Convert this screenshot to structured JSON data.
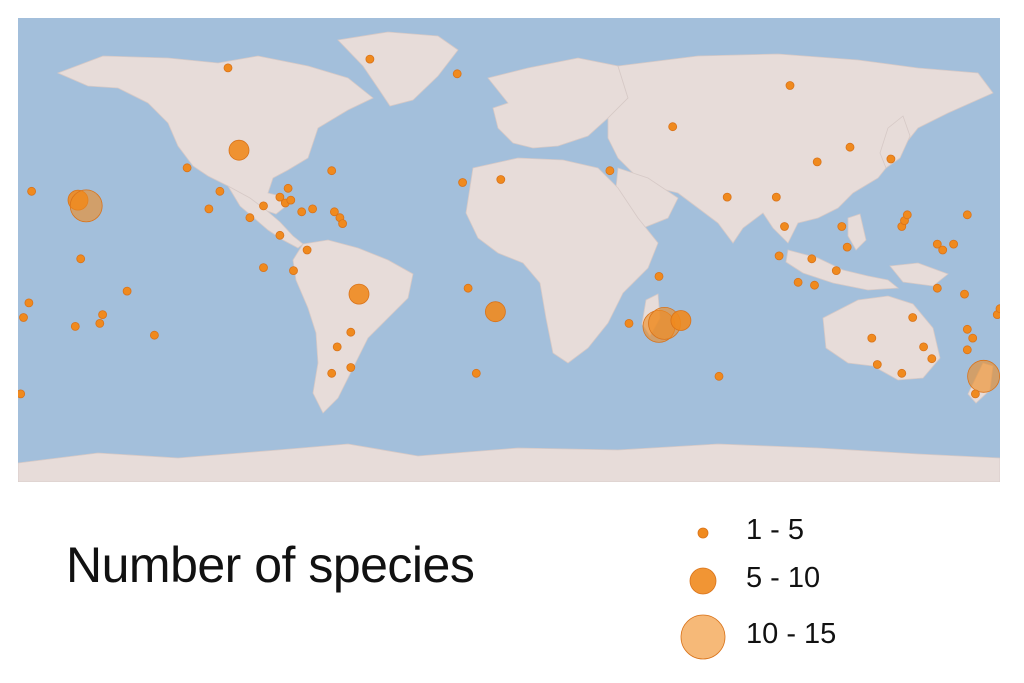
{
  "colors": {
    "ocean": "#a3bfdb",
    "land": "#e7dcd9",
    "marker": "#f08a1e",
    "marker_stroke": "#d9731a"
  },
  "legend": {
    "title": "Number of species",
    "classes": [
      {
        "label": "1 - 5",
        "size": "small"
      },
      {
        "label": "5 - 10",
        "size": "medium"
      },
      {
        "label": "10 - 15",
        "size": "large"
      }
    ]
  },
  "markers": [
    {
      "lon": -103,
      "lat": 67,
      "class": "small"
    },
    {
      "lon": -99,
      "lat": 39,
      "class": "medium"
    },
    {
      "lon": -51,
      "lat": 70,
      "class": "small"
    },
    {
      "lon": -19,
      "lat": 65,
      "class": "small"
    },
    {
      "lon": -65,
      "lat": 32,
      "class": "small"
    },
    {
      "lon": -118,
      "lat": 33,
      "class": "small"
    },
    {
      "lon": -106,
      "lat": 25,
      "class": "small"
    },
    {
      "lon": -110,
      "lat": 19,
      "class": "small"
    },
    {
      "lon": -95,
      "lat": 16,
      "class": "small"
    },
    {
      "lon": -90,
      "lat": 20,
      "class": "small"
    },
    {
      "lon": -84,
      "lat": 23,
      "class": "small"
    },
    {
      "lon": -82,
      "lat": 21,
      "class": "small"
    },
    {
      "lon": -81,
      "lat": 26,
      "class": "small"
    },
    {
      "lon": -80,
      "lat": 22,
      "class": "small"
    },
    {
      "lon": -76,
      "lat": 18,
      "class": "small"
    },
    {
      "lon": -72,
      "lat": 19,
      "class": "small"
    },
    {
      "lon": -64,
      "lat": 18,
      "class": "small"
    },
    {
      "lon": -62,
      "lat": 16,
      "class": "small"
    },
    {
      "lon": -61,
      "lat": 14,
      "class": "small"
    },
    {
      "lon": -84,
      "lat": 10,
      "class": "small"
    },
    {
      "lon": -74,
      "lat": 5,
      "class": "small"
    },
    {
      "lon": -79,
      "lat": -2,
      "class": "small"
    },
    {
      "lon": -90,
      "lat": -1,
      "class": "small"
    },
    {
      "lon": -55,
      "lat": -10,
      "class": "medium"
    },
    {
      "lon": -58,
      "lat": -23,
      "class": "small"
    },
    {
      "lon": -63,
      "lat": -28,
      "class": "small"
    },
    {
      "lon": -58,
      "lat": -35,
      "class": "small"
    },
    {
      "lon": -65,
      "lat": -37,
      "class": "small"
    },
    {
      "lon": -158,
      "lat": 22,
      "class": "medium"
    },
    {
      "lon": -155,
      "lat": 20,
      "class": "large"
    },
    {
      "lon": -175,
      "lat": 25,
      "class": "small"
    },
    {
      "lon": -157,
      "lat": 2,
      "class": "small"
    },
    {
      "lon": -176,
      "lat": -13,
      "class": "small"
    },
    {
      "lon": -178,
      "lat": -18,
      "class": "small"
    },
    {
      "lon": -159,
      "lat": -21,
      "class": "small"
    },
    {
      "lon": -149,
      "lat": -17,
      "class": "small"
    },
    {
      "lon": -150,
      "lat": -20,
      "class": "small"
    },
    {
      "lon": -140,
      "lat": -9,
      "class": "small"
    },
    {
      "lon": -130,
      "lat": -24,
      "class": "small"
    },
    {
      "lon": -179,
      "lat": -44,
      "class": "small"
    },
    {
      "lon": -17,
      "lat": 28,
      "class": "small"
    },
    {
      "lon": -3,
      "lat": 29,
      "class": "small"
    },
    {
      "lon": -15,
      "lat": -8,
      "class": "small"
    },
    {
      "lon": -5,
      "lat": -16,
      "class": "medium"
    },
    {
      "lon": -12,
      "lat": -37,
      "class": "small"
    },
    {
      "lon": 37,
      "lat": 32,
      "class": "small"
    },
    {
      "lon": 55,
      "lat": -4,
      "class": "small"
    },
    {
      "lon": 44,
      "lat": -20,
      "class": "small"
    },
    {
      "lon": 55,
      "lat": -21,
      "class": "large"
    },
    {
      "lon": 57,
      "lat": -20,
      "class": "large"
    },
    {
      "lon": 63,
      "lat": -19,
      "class": "medium"
    },
    {
      "lon": 77,
      "lat": -38,
      "class": "small"
    },
    {
      "lon": 80,
      "lat": 23,
      "class": "small"
    },
    {
      "lon": 60,
      "lat": 47,
      "class": "small"
    },
    {
      "lon": 103,
      "lat": 61,
      "class": "small"
    },
    {
      "lon": 113,
      "lat": 35,
      "class": "small"
    },
    {
      "lon": 98,
      "lat": 23,
      "class": "small"
    },
    {
      "lon": 101,
      "lat": 13,
      "class": "small"
    },
    {
      "lon": 111,
      "lat": 2,
      "class": "small"
    },
    {
      "lon": 99,
      "lat": 3,
      "class": "small"
    },
    {
      "lon": 125,
      "lat": 40,
      "class": "small"
    },
    {
      "lon": 140,
      "lat": 36,
      "class": "small"
    },
    {
      "lon": 122,
      "lat": 13,
      "class": "small"
    },
    {
      "lon": 124,
      "lat": 6,
      "class": "small"
    },
    {
      "lon": 144,
      "lat": 13,
      "class": "small"
    },
    {
      "lon": 145,
      "lat": 15,
      "class": "small"
    },
    {
      "lon": 146,
      "lat": 17,
      "class": "small"
    },
    {
      "lon": 157,
      "lat": 7,
      "class": "small"
    },
    {
      "lon": 163,
      "lat": 7,
      "class": "small"
    },
    {
      "lon": 159,
      "lat": 5,
      "class": "small"
    },
    {
      "lon": 168,
      "lat": 17,
      "class": "small"
    },
    {
      "lon": 167,
      "lat": -10,
      "class": "small"
    },
    {
      "lon": 157,
      "lat": -8,
      "class": "small"
    },
    {
      "lon": 179,
      "lat": -17,
      "class": "small"
    },
    {
      "lon": 168,
      "lat": -22,
      "class": "small"
    },
    {
      "lon": 170,
      "lat": -25,
      "class": "small"
    },
    {
      "lon": 168,
      "lat": -29,
      "class": "small"
    },
    {
      "lon": 174,
      "lat": -38,
      "class": "large"
    },
    {
      "lon": 171,
      "lat": -44,
      "class": "small"
    },
    {
      "lon": 180,
      "lat": -15,
      "class": "small"
    },
    {
      "lon": 133,
      "lat": -25,
      "class": "small"
    },
    {
      "lon": 135,
      "lat": -34,
      "class": "small"
    },
    {
      "lon": 144,
      "lat": -37,
      "class": "small"
    },
    {
      "lon": 152,
      "lat": -28,
      "class": "small"
    },
    {
      "lon": 148,
      "lat": -18,
      "class": "small"
    },
    {
      "lon": 155,
      "lat": -32,
      "class": "small"
    },
    {
      "lon": 112,
      "lat": -7,
      "class": "small"
    },
    {
      "lon": 106,
      "lat": -6,
      "class": "small"
    },
    {
      "lon": 120,
      "lat": -2,
      "class": "small"
    }
  ]
}
